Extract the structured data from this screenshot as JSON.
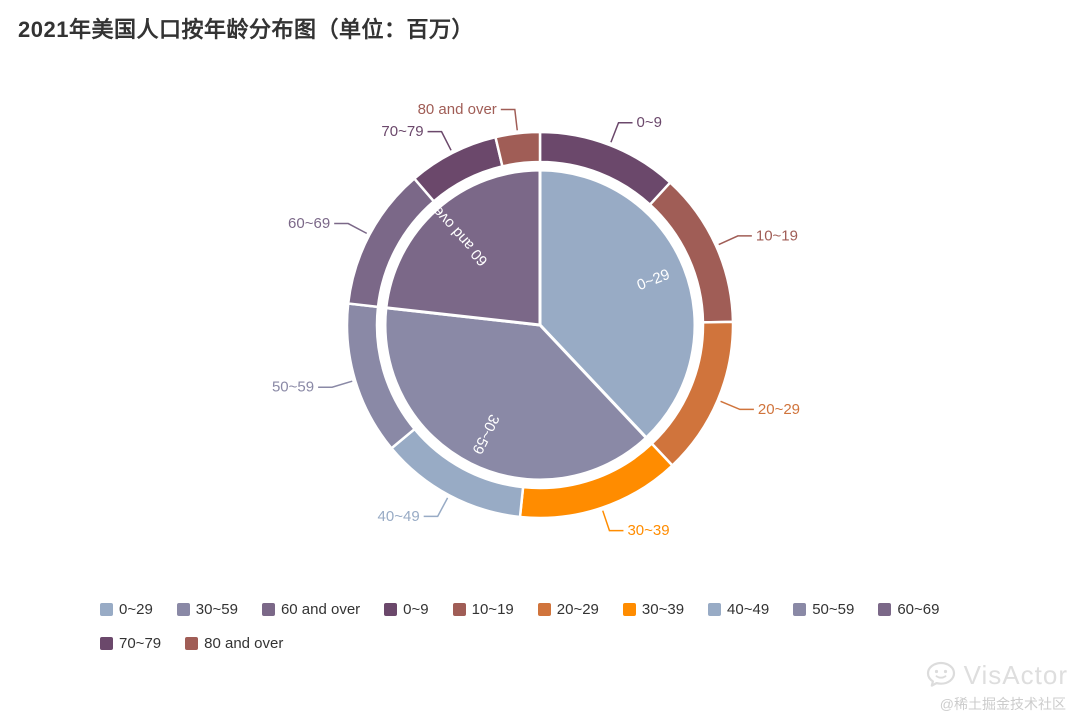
{
  "title": "2021年美国人口按年龄分布图（单位：百万）",
  "palette": [
    "#98abc5",
    "#8a89a6",
    "#7b6888",
    "#6b486b",
    "#a05d56",
    "#d0743c",
    "#ff8c00"
  ],
  "chart_data": {
    "type": "pie",
    "title": "2021年美国人口按年龄分布图（单位：百万）",
    "nested": true,
    "start_angle_deg": -90,
    "direction": "clockwise",
    "legend_position": "bottom",
    "series": [
      {
        "name": "inner-pie",
        "label_position": "inside",
        "label_color": "#ffffff",
        "categories": [
          "0~29",
          "30~59",
          "60 and over"
        ],
        "values": [
          126.04,
          128.77,
          77.09
        ],
        "colors": [
          "#98abc5",
          "#8a89a6",
          "#7b6888"
        ]
      },
      {
        "name": "outer-ring",
        "label_position": "outside",
        "categories": [
          "0~9",
          "10~19",
          "20~29",
          "30~39",
          "40~49",
          "50~59",
          "60~69",
          "70~79",
          "80 and over"
        ],
        "values": [
          39.12,
          43.01,
          43.91,
          45.4,
          40.89,
          42.48,
          39.63,
          25.17,
          12.29
        ],
        "colors": [
          "#6b486b",
          "#a05d56",
          "#d0743c",
          "#ff8c00",
          "#98abc5",
          "#8a89a6",
          "#7b6888",
          "#6b486b",
          "#a05d56"
        ]
      }
    ]
  },
  "legend": {
    "items": [
      {
        "label": "0~29",
        "color": "#98abc5"
      },
      {
        "label": "30~59",
        "color": "#8a89a6"
      },
      {
        "label": "60 and over",
        "color": "#7b6888"
      },
      {
        "label": "0~9",
        "color": "#6b486b"
      },
      {
        "label": "10~19",
        "color": "#a05d56"
      },
      {
        "label": "20~29",
        "color": "#d0743c"
      },
      {
        "label": "30~39",
        "color": "#ff8c00"
      },
      {
        "label": "40~49",
        "color": "#98abc5"
      },
      {
        "label": "50~59",
        "color": "#8a89a6"
      },
      {
        "label": "60~69",
        "color": "#7b6888"
      },
      {
        "label": "70~79",
        "color": "#6b486b"
      },
      {
        "label": "80 and over",
        "color": "#a05d56"
      }
    ]
  },
  "watermark": {
    "brand": "VisActor",
    "credit": "@稀土掘金技术社区"
  }
}
